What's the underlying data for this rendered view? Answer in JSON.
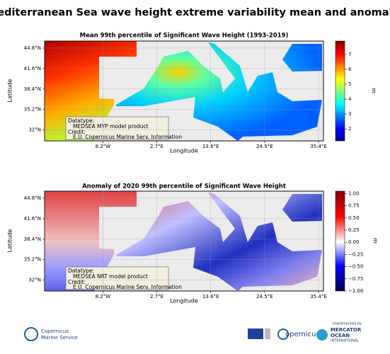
{
  "title": "Mediterranean Sea wave height extreme variability mean and anomaly.",
  "panels": [
    {
      "title": "Mean 99th percentile of Significant Wave Height (1993-2019)",
      "xlabel": "Longitude",
      "ylabel": "Latitude",
      "xlim": [
        -20,
        36.4
      ],
      "ylim": [
        30.3,
        45.9
      ],
      "xticks": [
        {
          "value": -8.2,
          "label": "8.2°W"
        },
        {
          "value": 2.7,
          "label": "2.7°E"
        },
        {
          "value": 13.6,
          "label": "13.6°E"
        },
        {
          "value": 24.5,
          "label": "24.5°E"
        },
        {
          "value": 35.4,
          "label": "35.4°E"
        }
      ],
      "yticks": [
        {
          "value": 32,
          "label": "32°N"
        },
        {
          "value": 35.2,
          "label": "35.2°N"
        },
        {
          "value": 38.4,
          "label": "38.4°N"
        },
        {
          "value": 41.6,
          "label": "41.6°N"
        },
        {
          "value": 44.8,
          "label": "44.8°N"
        }
      ],
      "colorbar": {
        "label": "m",
        "lim": [
          1.2,
          7.9
        ],
        "ticks": [
          2,
          3,
          4,
          5,
          6,
          7
        ],
        "colormap": "jet"
      },
      "info": {
        "datatype_label": "Datatype:",
        "datatype": "MEDSEA MYP model product",
        "credit_label": "Credit:",
        "credit": "E.U. Copernicus Marine Serv. Information"
      }
    },
    {
      "title": "Anomaly of 2020 99th percentile of Significant Wave Height",
      "xlabel": "Longitude",
      "ylabel": "Latitude",
      "xlim": [
        -20,
        36.4
      ],
      "ylim": [
        30.3,
        45.9
      ],
      "xticks": [
        {
          "value": -8.2,
          "label": "8.2°W"
        },
        {
          "value": 2.7,
          "label": "2.7°E"
        },
        {
          "value": 13.6,
          "label": "13.6°E"
        },
        {
          "value": 24.5,
          "label": "24.5°E"
        },
        {
          "value": 35.4,
          "label": "35.4°E"
        }
      ],
      "yticks": [
        {
          "value": 32,
          "label": "32°N"
        },
        {
          "value": 35.2,
          "label": "35.2°N"
        },
        {
          "value": 38.4,
          "label": "38.4°N"
        },
        {
          "value": 41.6,
          "label": "41.6°N"
        },
        {
          "value": 44.8,
          "label": "44.8°N"
        }
      ],
      "colorbar": {
        "label": "m",
        "lim": [
          -1,
          1.05
        ],
        "colormap": "seismic",
        "ticks": [
          {
            "value": -1,
            "label": "−1.00"
          },
          {
            "value": -0.75,
            "label": "−0.75"
          },
          {
            "value": -0.5,
            "label": "−0.50"
          },
          {
            "value": -0.25,
            "label": "−0.25"
          },
          {
            "value": 0,
            "label": "0.00"
          },
          0.25,
          {
            "value": 0.5,
            "label": "0.50"
          },
          0.75,
          {
            "value": 1,
            "label": "1.00"
          }
        ]
      },
      "info": {
        "datatype_label": "Datatype:",
        "datatype": "MEDSEA NRT model product",
        "credit_label": "Credit:",
        "credit": "E.U. Copernicus Marine Serv. Information"
      }
    }
  ],
  "footer": {
    "cms_1": "Copernicus",
    "cms_2": "Marine Service",
    "copernicus": "opernicus",
    "implemented": "implemented by",
    "mercator_1": "MERCATOR",
    "mercator_2": "OCEAN",
    "mercator_3": "INTERNATIONAL"
  }
}
